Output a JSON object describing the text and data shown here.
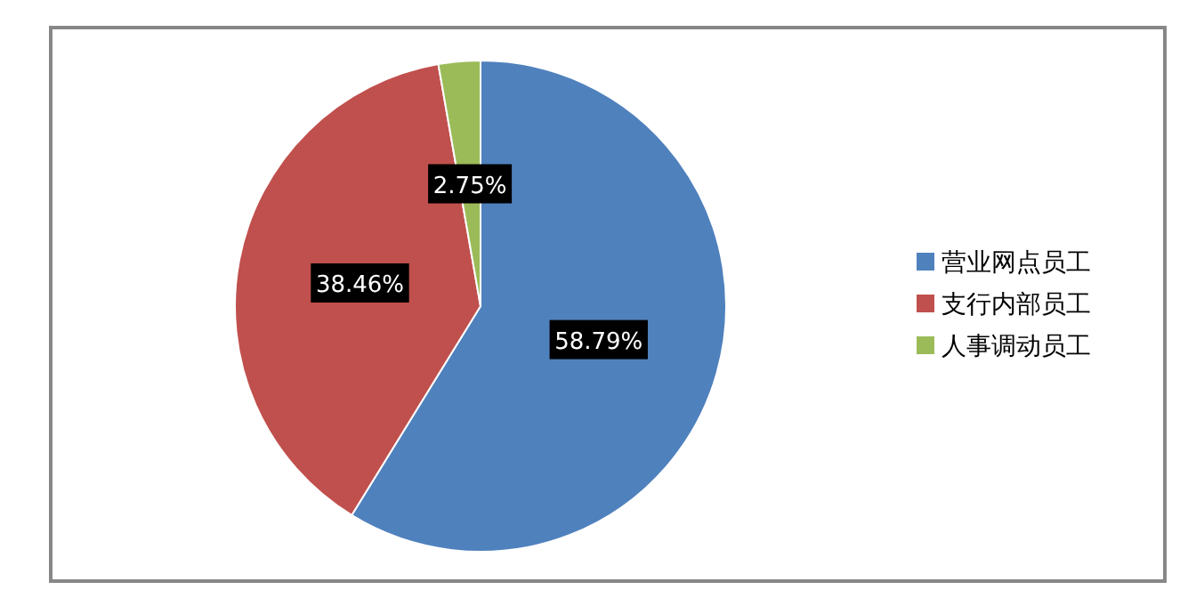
{
  "chart_data": {
    "type": "pie",
    "categories": [
      "营业网点员工",
      "支行内部员工",
      "人事调动员工"
    ],
    "values": [
      58.79,
      38.46,
      2.75
    ],
    "colors": [
      "#4f81bd",
      "#c0504d",
      "#9bbb59"
    ],
    "value_labels": [
      "58.79%",
      "38.46%",
      "2.75%"
    ],
    "legend": "right"
  }
}
